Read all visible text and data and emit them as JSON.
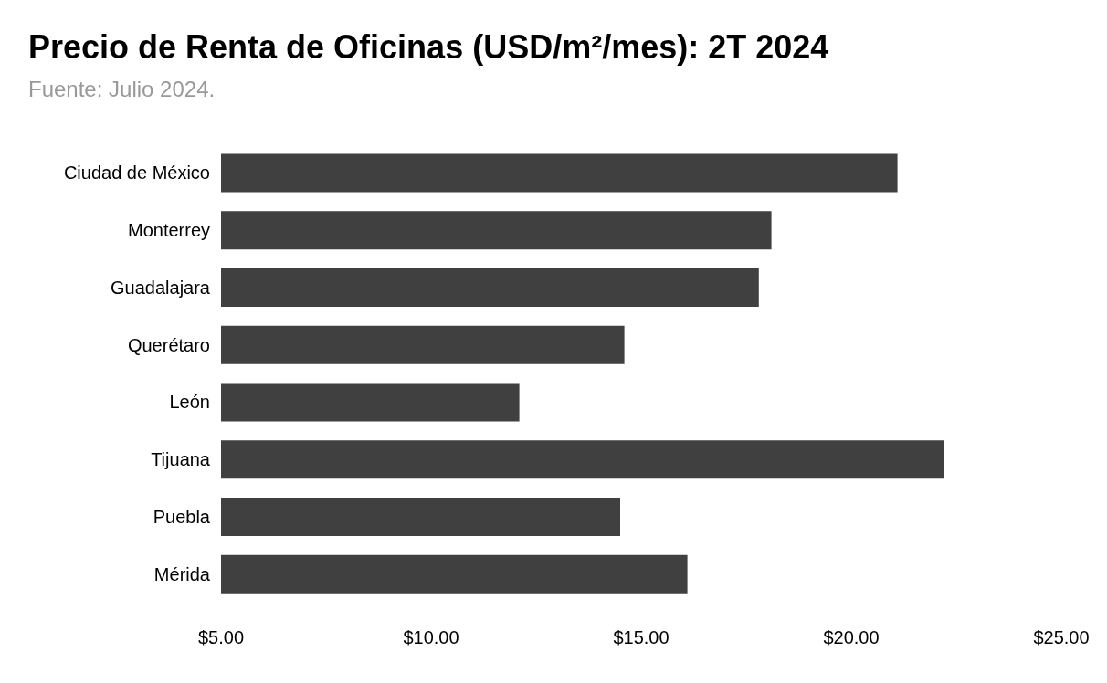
{
  "chart_data": {
    "type": "bar",
    "orientation": "horizontal",
    "title": "Precio de Renta de Oficinas (USD/m²/mes): 2T 2024",
    "subtitle": "Fuente: Julio 2024.",
    "categories": [
      "Ciudad de México",
      "Monterrey",
      "Guadalajara",
      "Querétaro",
      "León",
      "Tijuana",
      "Puebla",
      "Mérida"
    ],
    "values": [
      21.1,
      18.1,
      17.8,
      14.6,
      12.1,
      22.2,
      14.5,
      16.1
    ],
    "color": "#404040",
    "xlim": [
      5,
      25
    ],
    "xticks": [
      {
        "value": 5,
        "label": "$5.00"
      },
      {
        "value": 10,
        "label": "$10.00"
      },
      {
        "value": 15,
        "label": "$15.00"
      },
      {
        "value": 20,
        "label": "$20.00"
      },
      {
        "value": 25,
        "label": "$25.00"
      }
    ],
    "grid": false
  }
}
